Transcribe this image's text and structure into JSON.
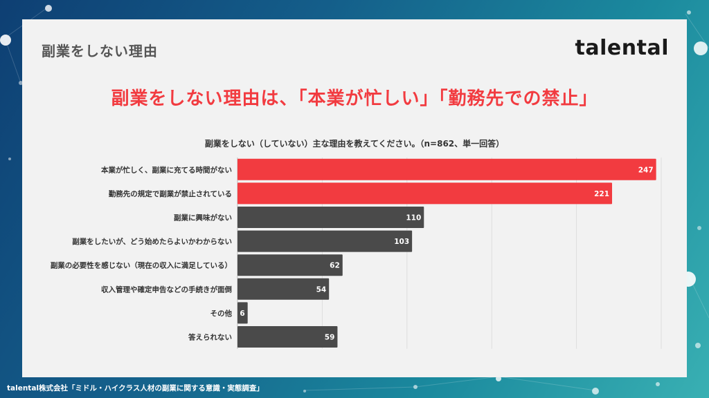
{
  "header": {
    "section_title": "副業をしない理由",
    "brand": "talental",
    "headline": "副業をしない理由は、「本業が忙しい」「勤務先での禁止」",
    "question": "副業をしない（していない）主な理由を教えてください。（n=862、単一回答）"
  },
  "footer": {
    "source": "talental株式会社「ミドル・ハイクラス人材の副業に関する意識・実態調査」"
  },
  "colors": {
    "highlight": "#f23b40",
    "default_bar": "#4a4a4a",
    "label_text": "#333333",
    "value_text": "#ffffff"
  },
  "chart_data": {
    "type": "bar",
    "orientation": "horizontal",
    "title": "副業をしない（していない）主な理由を教えてください。（n=862、単一回答）",
    "categories": [
      "本業が忙しく、副業に充てる時間がない",
      "勤務先の規定で副業が禁止されている",
      "副業に興味がない",
      "副業をしたいが、どう始めたらよいかわからない",
      "副業の必要性を感じない（現在の収入に満足している）",
      "収入管理や確定申告などの手続きが面倒",
      "その他",
      "答えられない"
    ],
    "values": [
      247,
      221,
      110,
      103,
      62,
      54,
      6,
      59
    ],
    "highlighted": [
      true,
      true,
      false,
      false,
      false,
      false,
      false,
      false
    ],
    "xlim": [
      0,
      250
    ],
    "grid": true,
    "data_labels": true,
    "legend": "none"
  }
}
